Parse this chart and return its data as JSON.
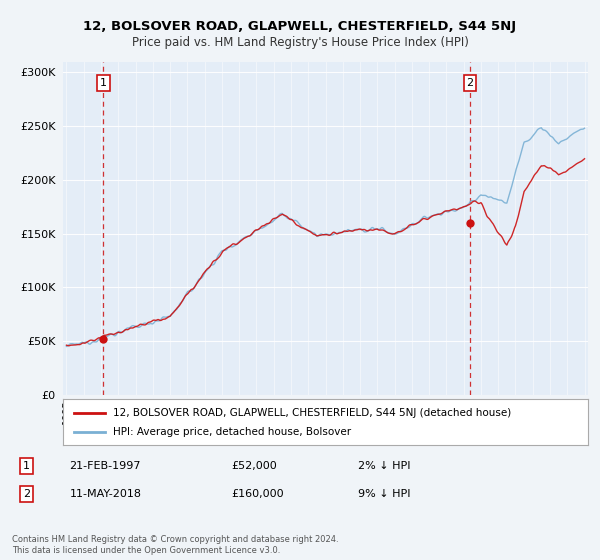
{
  "title": "12, BOLSOVER ROAD, GLAPWELL, CHESTERFIELD, S44 5NJ",
  "subtitle": "Price paid vs. HM Land Registry's House Price Index (HPI)",
  "legend_line1": "12, BOLSOVER ROAD, GLAPWELL, CHESTERFIELD, S44 5NJ (detached house)",
  "legend_line2": "HPI: Average price, detached house, Bolsover",
  "transaction1": {
    "label": "1",
    "date": "21-FEB-1997",
    "price": 52000,
    "hpi_diff": "2% ↓ HPI"
  },
  "transaction2": {
    "label": "2",
    "date": "11-MAY-2018",
    "price": 160000,
    "hpi_diff": "9% ↓ HPI"
  },
  "footer1": "Contains HM Land Registry data © Crown copyright and database right 2024.",
  "footer2": "This data is licensed under the Open Government Licence v3.0.",
  "start_year": 1995,
  "end_year": 2025,
  "ylim_min": 0,
  "ylim_max": 310000,
  "yticks": [
    0,
    50000,
    100000,
    150000,
    200000,
    250000,
    300000
  ],
  "bg_color": "#f0f4f8",
  "plot_bg": "#e4edf7",
  "line_color_price": "#cc1111",
  "line_color_hpi": "#7ab0d4",
  "marker_color": "#cc1111",
  "dashed_line_color": "#cc1111",
  "transaction1_year": 1997.13,
  "transaction2_year": 2018.36
}
